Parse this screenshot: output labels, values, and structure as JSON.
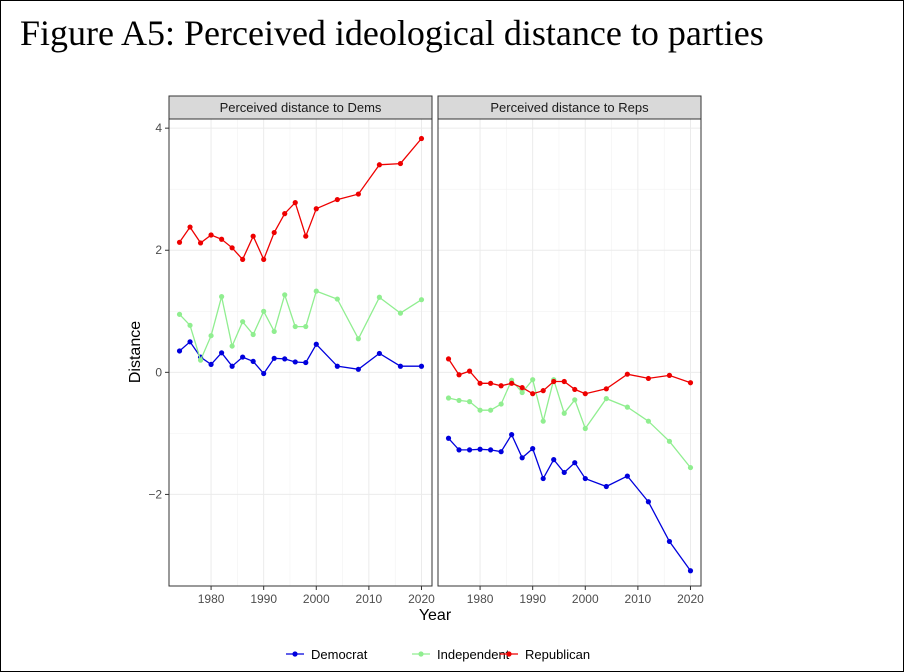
{
  "title": "Figure A5: Perceived ideological distance to parties",
  "chart_data": {
    "type": "line",
    "xlabel": "Year",
    "ylabel": "Distance",
    "xlim": [
      1972,
      2022
    ],
    "ylim": [
      -3.5,
      4.15
    ],
    "x_ticks": [
      1980,
      1990,
      2000,
      2010,
      2020
    ],
    "y_ticks": [
      -2,
      0,
      2,
      4
    ],
    "y_tick_labels": [
      "−2",
      "0",
      "2",
      "4"
    ],
    "grid": true,
    "legend_position": "bottom",
    "legend": [
      {
        "name": "Democrat",
        "color": "#0000dd"
      },
      {
        "name": "Independent",
        "color": "#90ee90"
      },
      {
        "name": "Republican",
        "color": "#ee0000"
      }
    ],
    "panels": [
      {
        "title": "Perceived distance to Dems",
        "series": [
          {
            "name": "Democrat",
            "color": "#0000dd",
            "x": [
              1974,
              1976,
              1978,
              1980,
              1982,
              1984,
              1986,
              1988,
              1990,
              1992,
              1994,
              1996,
              1998,
              2000,
              2004,
              2008,
              2012,
              2016,
              2020
            ],
            "y": [
              0.35,
              0.5,
              0.25,
              0.13,
              0.32,
              0.1,
              0.25,
              0.18,
              -0.02,
              0.23,
              0.22,
              0.17,
              0.16,
              0.46,
              0.1,
              0.05,
              0.31,
              0.1,
              0.1
            ]
          },
          {
            "name": "Independent",
            "color": "#90ee90",
            "x": [
              1974,
              1976,
              1978,
              1980,
              1982,
              1984,
              1986,
              1988,
              1990,
              1992,
              1994,
              1996,
              1998,
              2000,
              2004,
              2008,
              2012,
              2016,
              2020
            ],
            "y": [
              0.95,
              0.77,
              0.2,
              0.6,
              1.24,
              0.43,
              0.83,
              0.62,
              1.0,
              0.67,
              1.27,
              0.75,
              0.75,
              1.33,
              1.2,
              0.55,
              1.23,
              0.97,
              1.19
            ]
          },
          {
            "name": "Republican",
            "color": "#ee0000",
            "x": [
              1974,
              1976,
              1978,
              1980,
              1982,
              1984,
              1986,
              1988,
              1990,
              1992,
              1994,
              1996,
              1998,
              2000,
              2004,
              2008,
              2012,
              2016,
              2020
            ],
            "y": [
              2.13,
              2.38,
              2.12,
              2.25,
              2.18,
              2.04,
              1.85,
              2.23,
              1.85,
              2.29,
              2.6,
              2.78,
              2.23,
              2.68,
              2.83,
              2.92,
              3.4,
              3.42,
              3.83
            ]
          }
        ]
      },
      {
        "title": "Perceived distance to Reps",
        "series": [
          {
            "name": "Democrat",
            "color": "#0000dd",
            "x": [
              1974,
              1976,
              1978,
              1980,
              1982,
              1984,
              1986,
              1988,
              1990,
              1992,
              1994,
              1996,
              1998,
              2000,
              2004,
              2008,
              2012,
              2016,
              2020
            ],
            "y": [
              -1.08,
              -1.27,
              -1.27,
              -1.26,
              -1.27,
              -1.3,
              -1.02,
              -1.4,
              -1.25,
              -1.74,
              -1.43,
              -1.64,
              -1.48,
              -1.74,
              -1.87,
              -1.7,
              -2.12,
              -2.77,
              -3.25
            ]
          },
          {
            "name": "Independent",
            "color": "#90ee90",
            "x": [
              1974,
              1976,
              1978,
              1980,
              1982,
              1984,
              1986,
              1988,
              1990,
              1992,
              1994,
              1996,
              1998,
              2000,
              2004,
              2008,
              2012,
              2016,
              2020
            ],
            "y": [
              -0.42,
              -0.46,
              -0.48,
              -0.62,
              -0.62,
              -0.52,
              -0.13,
              -0.33,
              -0.12,
              -0.8,
              -0.12,
              -0.67,
              -0.45,
              -0.92,
              -0.43,
              -0.57,
              -0.8,
              -1.13,
              -1.56
            ]
          },
          {
            "name": "Republican",
            "color": "#ee0000",
            "x": [
              1974,
              1976,
              1978,
              1980,
              1982,
              1984,
              1986,
              1988,
              1990,
              1992,
              1994,
              1996,
              1998,
              2000,
              2004,
              2008,
              2012,
              2016,
              2020
            ],
            "y": [
              0.22,
              -0.04,
              0.02,
              -0.18,
              -0.18,
              -0.22,
              -0.18,
              -0.25,
              -0.35,
              -0.3,
              -0.15,
              -0.15,
              -0.28,
              -0.35,
              -0.27,
              -0.03,
              -0.1,
              -0.05,
              -0.17
            ]
          }
        ]
      }
    ]
  }
}
